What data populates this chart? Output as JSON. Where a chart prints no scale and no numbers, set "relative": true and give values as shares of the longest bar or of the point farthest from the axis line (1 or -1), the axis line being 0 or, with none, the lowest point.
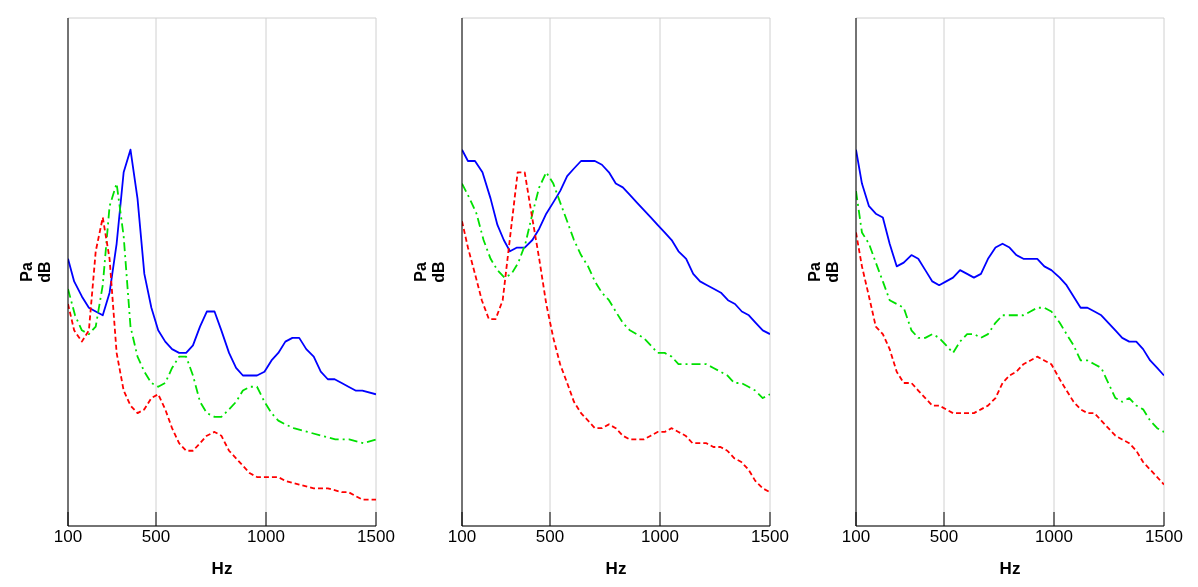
{
  "chart_data": [
    {
      "type": "line",
      "relative": true,
      "xlabel": "Hz",
      "ylabel": "Pa\ndB",
      "xlim": [
        100,
        1500
      ],
      "xticks": [
        100,
        500,
        1000,
        1500
      ],
      "grid": true,
      "series": [
        {
          "color": "#0000ff",
          "line_style": "solid",
          "x": [
            100,
            128,
            163,
            195,
            226,
            258,
            289,
            321,
            353,
            384,
            416,
            447,
            479,
            510,
            542,
            573,
            605,
            637,
            668,
            700,
            731,
            766,
            797,
            832,
            864,
            895,
            927,
            959,
            993,
            1025,
            1056,
            1088,
            1120,
            1151,
            1183,
            1217,
            1249,
            1281,
            1312,
            1344,
            1375,
            1407,
            1438,
            1500
          ],
          "values": [
            0.71,
            0.65,
            0.61,
            0.58,
            0.57,
            0.56,
            0.62,
            0.75,
            0.94,
            1,
            0.87,
            0.67,
            0.58,
            0.52,
            0.49,
            0.47,
            0.46,
            0.46,
            0.48,
            0.53,
            0.57,
            0.57,
            0.52,
            0.46,
            0.42,
            0.4,
            0.4,
            0.4,
            0.41,
            0.44,
            0.46,
            0.49,
            0.5,
            0.5,
            0.47,
            0.45,
            0.41,
            0.39,
            0.39,
            0.38,
            0.37,
            0.36,
            0.36,
            0.35
          ]
        },
        {
          "color": "#00e000",
          "line_style": "dashdot",
          "x": [
            100,
            132,
            163,
            195,
            226,
            258,
            289,
            321,
            353,
            384,
            416,
            447,
            479,
            510,
            542,
            573,
            605,
            637,
            668,
            700,
            731,
            766,
            797,
            832,
            864,
            895,
            927,
            959,
            993,
            1025,
            1056,
            1088,
            1126,
            1189,
            1252,
            1315,
            1378,
            1442,
            1500
          ],
          "values": [
            0.63,
            0.56,
            0.52,
            0.51,
            0.53,
            0.64,
            0.85,
            0.91,
            0.77,
            0.53,
            0.45,
            0.41,
            0.38,
            0.37,
            0.38,
            0.42,
            0.45,
            0.45,
            0.4,
            0.33,
            0.3,
            0.29,
            0.29,
            0.31,
            0.33,
            0.36,
            0.37,
            0.37,
            0.33,
            0.3,
            0.28,
            0.27,
            0.26,
            0.25,
            0.24,
            0.23,
            0.23,
            0.22,
            0.23
          ]
        },
        {
          "color": "#ff0000",
          "line_style": "dashed",
          "x": [
            100,
            128,
            163,
            195,
            226,
            258,
            289,
            321,
            353,
            384,
            416,
            447,
            479,
            510,
            542,
            573,
            605,
            637,
            668,
            700,
            731,
            766,
            797,
            832,
            864,
            895,
            927,
            959,
            993,
            1056,
            1088,
            1151,
            1217,
            1281,
            1344,
            1375,
            1438,
            1500
          ],
          "values": [
            0.59,
            0.52,
            0.49,
            0.52,
            0.73,
            0.82,
            0.71,
            0.46,
            0.36,
            0.32,
            0.3,
            0.31,
            0.34,
            0.35,
            0.31,
            0.26,
            0.22,
            0.2,
            0.2,
            0.22,
            0.24,
            0.25,
            0.24,
            0.2,
            0.18,
            0.16,
            0.14,
            0.13,
            0.13,
            0.13,
            0.12,
            0.11,
            0.1,
            0.1,
            0.09,
            0.09,
            0.07,
            0.07
          ]
        }
      ]
    },
    {
      "type": "line",
      "relative": true,
      "xlabel": "Hz",
      "ylabel": "Pa\ndB",
      "xlim": [
        100,
        1500
      ],
      "xticks": [
        100,
        500,
        1000,
        1500
      ],
      "grid": true,
      "series": [
        {
          "color": "#0000ff",
          "line_style": "solid",
          "x": [
            100,
            127,
            159,
            193,
            230,
            261,
            290,
            318,
            350,
            385,
            420,
            451,
            483,
            515,
            546,
            578,
            609,
            641,
            673,
            704,
            736,
            768,
            799,
            831,
            863,
            894,
            926,
            958,
            989,
            1021,
            1053,
            1084,
            1119,
            1151,
            1182,
            1214,
            1246,
            1277,
            1309,
            1341,
            1372,
            1404,
            1435,
            1467,
            1500
          ],
          "values": [
            1,
            0.97,
            0.97,
            0.94,
            0.87,
            0.8,
            0.76,
            0.73,
            0.74,
            0.74,
            0.76,
            0.79,
            0.83,
            0.86,
            0.89,
            0.93,
            0.95,
            0.97,
            0.97,
            0.97,
            0.96,
            0.94,
            0.91,
            0.9,
            0.88,
            0.86,
            0.84,
            0.82,
            0.8,
            0.78,
            0.76,
            0.73,
            0.71,
            0.67,
            0.65,
            0.64,
            0.63,
            0.62,
            0.6,
            0.59,
            0.57,
            0.56,
            0.54,
            0.52,
            0.51
          ]
        },
        {
          "color": "#00e000",
          "line_style": "dashdot",
          "x": [
            100,
            135,
            166,
            198,
            230,
            261,
            293,
            325,
            356,
            388,
            420,
            451,
            483,
            515,
            546,
            578,
            609,
            641,
            673,
            704,
            736,
            768,
            799,
            831,
            863,
            894,
            926,
            958,
            989,
            1021,
            1053,
            1084,
            1116,
            1148,
            1179,
            1211,
            1243,
            1275,
            1306,
            1338,
            1370,
            1402,
            1433,
            1467,
            1500
          ],
          "values": [
            0.91,
            0.87,
            0.83,
            0.76,
            0.71,
            0.68,
            0.66,
            0.67,
            0.7,
            0.75,
            0.83,
            0.9,
            0.94,
            0.91,
            0.86,
            0.81,
            0.76,
            0.72,
            0.69,
            0.65,
            0.62,
            0.6,
            0.57,
            0.54,
            0.52,
            0.51,
            0.5,
            0.48,
            0.46,
            0.46,
            0.45,
            0.43,
            0.43,
            0.43,
            0.43,
            0.43,
            0.42,
            0.41,
            0.4,
            0.38,
            0.38,
            0.37,
            0.36,
            0.34,
            0.35
          ]
        },
        {
          "color": "#ff0000",
          "line_style": "dashed",
          "x": [
            100,
            127,
            159,
            190,
            222,
            253,
            285,
            317,
            353,
            385,
            416,
            451,
            483,
            515,
            546,
            578,
            609,
            641,
            673,
            704,
            736,
            768,
            799,
            831,
            863,
            894,
            926,
            958,
            989,
            1021,
            1053,
            1084,
            1116,
            1148,
            1179,
            1211,
            1243,
            1275,
            1306,
            1338,
            1370,
            1402,
            1433,
            1467,
            1500
          ],
          "values": [
            0.81,
            0.74,
            0.67,
            0.6,
            0.55,
            0.55,
            0.6,
            0.76,
            0.94,
            0.94,
            0.83,
            0.71,
            0.59,
            0.5,
            0.43,
            0.38,
            0.33,
            0.3,
            0.28,
            0.26,
            0.26,
            0.27,
            0.26,
            0.24,
            0.23,
            0.23,
            0.23,
            0.24,
            0.25,
            0.25,
            0.26,
            0.25,
            0.24,
            0.22,
            0.22,
            0.22,
            0.21,
            0.21,
            0.2,
            0.18,
            0.17,
            0.15,
            0.12,
            0.1,
            0.09
          ]
        }
      ]
    },
    {
      "type": "line",
      "relative": true,
      "xlabel": "Hz",
      "ylabel": "Pa\ndB",
      "xlim": [
        100,
        1500
      ],
      "xticks": [
        100,
        500,
        1000,
        1500
      ],
      "grid": true,
      "series": [
        {
          "color": "#0000ff",
          "line_style": "solid",
          "x": [
            100,
            127,
            159,
            190,
            222,
            253,
            285,
            317,
            352,
            383,
            415,
            447,
            478,
            510,
            541,
            573,
            605,
            636,
            668,
            700,
            734,
            766,
            798,
            829,
            861,
            893,
            924,
            956,
            988,
            1026,
            1057,
            1089,
            1121,
            1152,
            1184,
            1215,
            1247,
            1279,
            1310,
            1342,
            1374,
            1405,
            1437,
            1469,
            1500
          ],
          "values": [
            1,
            0.91,
            0.85,
            0.83,
            0.82,
            0.75,
            0.69,
            0.7,
            0.72,
            0.71,
            0.68,
            0.65,
            0.64,
            0.65,
            0.66,
            0.68,
            0.67,
            0.66,
            0.67,
            0.71,
            0.74,
            0.75,
            0.74,
            0.72,
            0.71,
            0.71,
            0.71,
            0.69,
            0.68,
            0.66,
            0.64,
            0.61,
            0.58,
            0.58,
            0.57,
            0.56,
            0.54,
            0.52,
            0.5,
            0.49,
            0.49,
            0.47,
            0.44,
            0.42,
            0.4
          ]
        },
        {
          "color": "#00e000",
          "line_style": "dashdot",
          "x": [
            100,
            127,
            159,
            190,
            222,
            253,
            285,
            317,
            352,
            383,
            415,
            447,
            478,
            510,
            541,
            573,
            605,
            636,
            668,
            700,
            734,
            766,
            798,
            829,
            861,
            893,
            924,
            956,
            988,
            1026,
            1057,
            1089,
            1121,
            1152,
            1184,
            1215,
            1247,
            1279,
            1310,
            1342,
            1374,
            1405,
            1437,
            1469,
            1500
          ],
          "values": [
            0.89,
            0.78,
            0.75,
            0.7,
            0.65,
            0.6,
            0.59,
            0.58,
            0.52,
            0.5,
            0.5,
            0.51,
            0.5,
            0.48,
            0.46,
            0.49,
            0.51,
            0.51,
            0.5,
            0.51,
            0.54,
            0.56,
            0.56,
            0.56,
            0.56,
            0.57,
            0.58,
            0.58,
            0.57,
            0.54,
            0.51,
            0.48,
            0.44,
            0.44,
            0.43,
            0.42,
            0.38,
            0.34,
            0.33,
            0.34,
            0.32,
            0.31,
            0.28,
            0.26,
            0.25
          ]
        },
        {
          "color": "#ff0000",
          "line_style": "dashed",
          "x": [
            100,
            127,
            159,
            190,
            222,
            253,
            285,
            317,
            352,
            383,
            415,
            447,
            478,
            510,
            541,
            573,
            605,
            636,
            668,
            700,
            734,
            766,
            798,
            829,
            861,
            893,
            924,
            956,
            988,
            1026,
            1057,
            1089,
            1121,
            1152,
            1184,
            1215,
            1247,
            1279,
            1310,
            1342,
            1374,
            1405,
            1437,
            1469,
            1500
          ],
          "values": [
            0.78,
            0.69,
            0.61,
            0.53,
            0.51,
            0.47,
            0.41,
            0.38,
            0.38,
            0.36,
            0.34,
            0.32,
            0.32,
            0.31,
            0.3,
            0.3,
            0.3,
            0.3,
            0.31,
            0.32,
            0.34,
            0.38,
            0.4,
            0.41,
            0.43,
            0.44,
            0.45,
            0.44,
            0.43,
            0.39,
            0.36,
            0.33,
            0.31,
            0.3,
            0.3,
            0.28,
            0.26,
            0.24,
            0.23,
            0.22,
            0.2,
            0.17,
            0.15,
            0.13,
            0.11
          ]
        }
      ]
    }
  ]
}
